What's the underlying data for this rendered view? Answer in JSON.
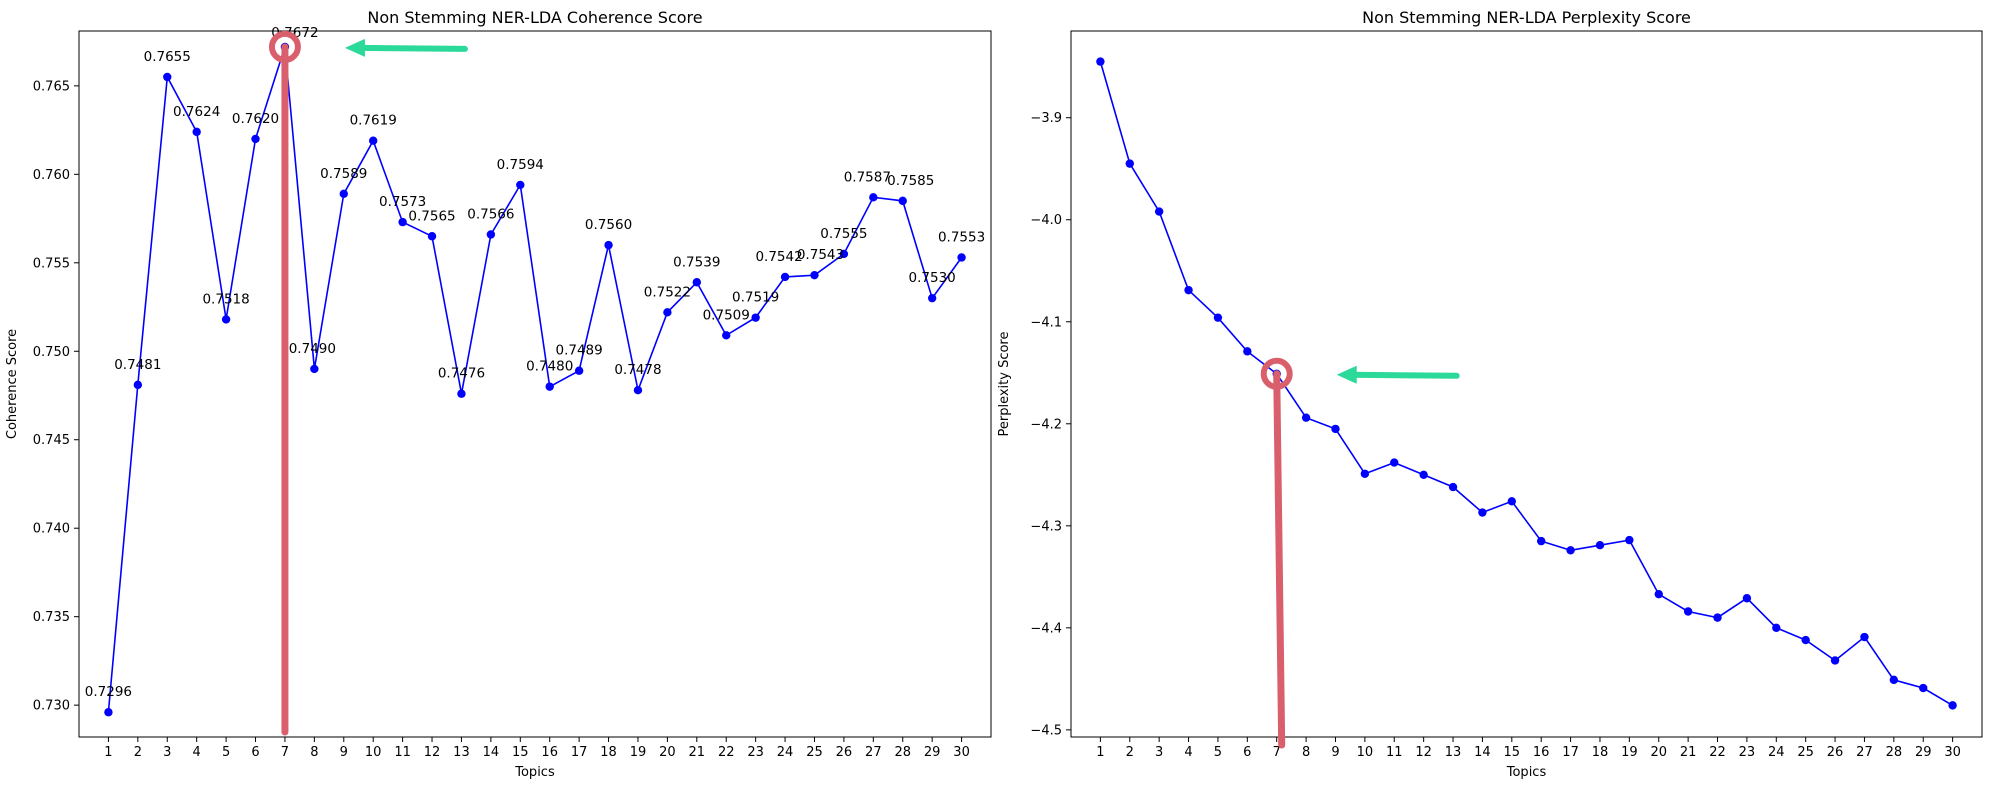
{
  "chart_data": [
    {
      "type": "line",
      "title": "Non Stemming NER-LDA Coherence Score",
      "xlabel": "Topics",
      "ylabel": "Coherence Score",
      "x": [
        1,
        2,
        3,
        4,
        5,
        6,
        7,
        8,
        9,
        10,
        11,
        12,
        13,
        14,
        15,
        16,
        17,
        18,
        19,
        20,
        21,
        22,
        23,
        24,
        25,
        26,
        27,
        28,
        29,
        30
      ],
      "values": [
        0.7296,
        0.7481,
        0.7655,
        0.7624,
        0.7518,
        0.762,
        0.7672,
        0.749,
        0.7589,
        0.7619,
        0.7573,
        0.7565,
        0.7476,
        0.7566,
        0.7594,
        0.748,
        0.7489,
        0.756,
        0.7478,
        0.7522,
        0.7539,
        0.7509,
        0.7519,
        0.7542,
        0.7543,
        0.7555,
        0.7587,
        0.7585,
        0.753,
        0.7553
      ],
      "data_labels": [
        "0.7296",
        "0.7481",
        "0.7655",
        "0.7624",
        "0.7518",
        "0.7620",
        "0.7672",
        "0.7490",
        "0.7589",
        "0.7619",
        "0.7573",
        "0.7565",
        "0.7476",
        "0.7566",
        "0.7594",
        "0.7480",
        "0.7489",
        "0.7560",
        "0.7478",
        "0.7522",
        "0.7539",
        "0.7509",
        "0.7519",
        "0.7542",
        "0.7543",
        "0.7555",
        "0.7587",
        "0.7585",
        "0.7530",
        "0.7553"
      ],
      "yticks": [
        "0.730",
        "0.735",
        "0.740",
        "0.745",
        "0.750",
        "0.755",
        "0.760",
        "0.765"
      ],
      "ytick_values": [
        0.73,
        0.735,
        0.74,
        0.745,
        0.75,
        0.755,
        0.76,
        0.765
      ],
      "ylim": [
        0.7282,
        0.7681
      ],
      "xlim": [
        0.0,
        31.0
      ],
      "line_color": "#0000ff",
      "marker_color": "#0000ff",
      "annotations": {
        "highlight_topic": 7,
        "circle_color": "#d95f6c",
        "arrow_color": "#2bd999",
        "vertical_line_color": "#d95f6c"
      }
    },
    {
      "type": "line",
      "title": "Non Stemming NER-LDA Perplexity Score",
      "xlabel": "Topics",
      "ylabel": "Perplexity Score",
      "x": [
        1,
        2,
        3,
        4,
        5,
        6,
        7,
        8,
        9,
        10,
        11,
        12,
        13,
        14,
        15,
        16,
        17,
        18,
        19,
        20,
        21,
        22,
        23,
        24,
        25,
        26,
        27,
        28,
        29,
        30
      ],
      "values": [
        -3.845,
        -3.945,
        -3.992,
        -4.069,
        -4.096,
        -4.129,
        -4.151,
        -4.194,
        -4.205,
        -4.249,
        -4.238,
        -4.25,
        -4.262,
        -4.287,
        -4.276,
        -4.315,
        -4.324,
        -4.319,
        -4.314,
        -4.367,
        -4.384,
        -4.39,
        -4.371,
        -4.4,
        -4.412,
        -4.432,
        -4.409,
        -4.451,
        -4.459,
        -4.476
      ],
      "yticks": [
        "−3.9",
        "−4.0",
        "−4.1",
        "−4.2",
        "−4.3",
        "−4.4",
        "−4.5"
      ],
      "ytick_values": [
        -3.9,
        -4.0,
        -4.1,
        -4.2,
        -4.3,
        -4.4,
        -4.5
      ],
      "ylim": [
        -4.507,
        -3.815
      ],
      "xlim": [
        0.0,
        31.0
      ],
      "line_color": "#0000ff",
      "marker_color": "#0000ff",
      "annotations": {
        "highlight_topic": 7,
        "circle_color": "#d95f6c",
        "arrow_color": "#2bd999",
        "vertical_line_color": "#d95f6c"
      }
    }
  ]
}
